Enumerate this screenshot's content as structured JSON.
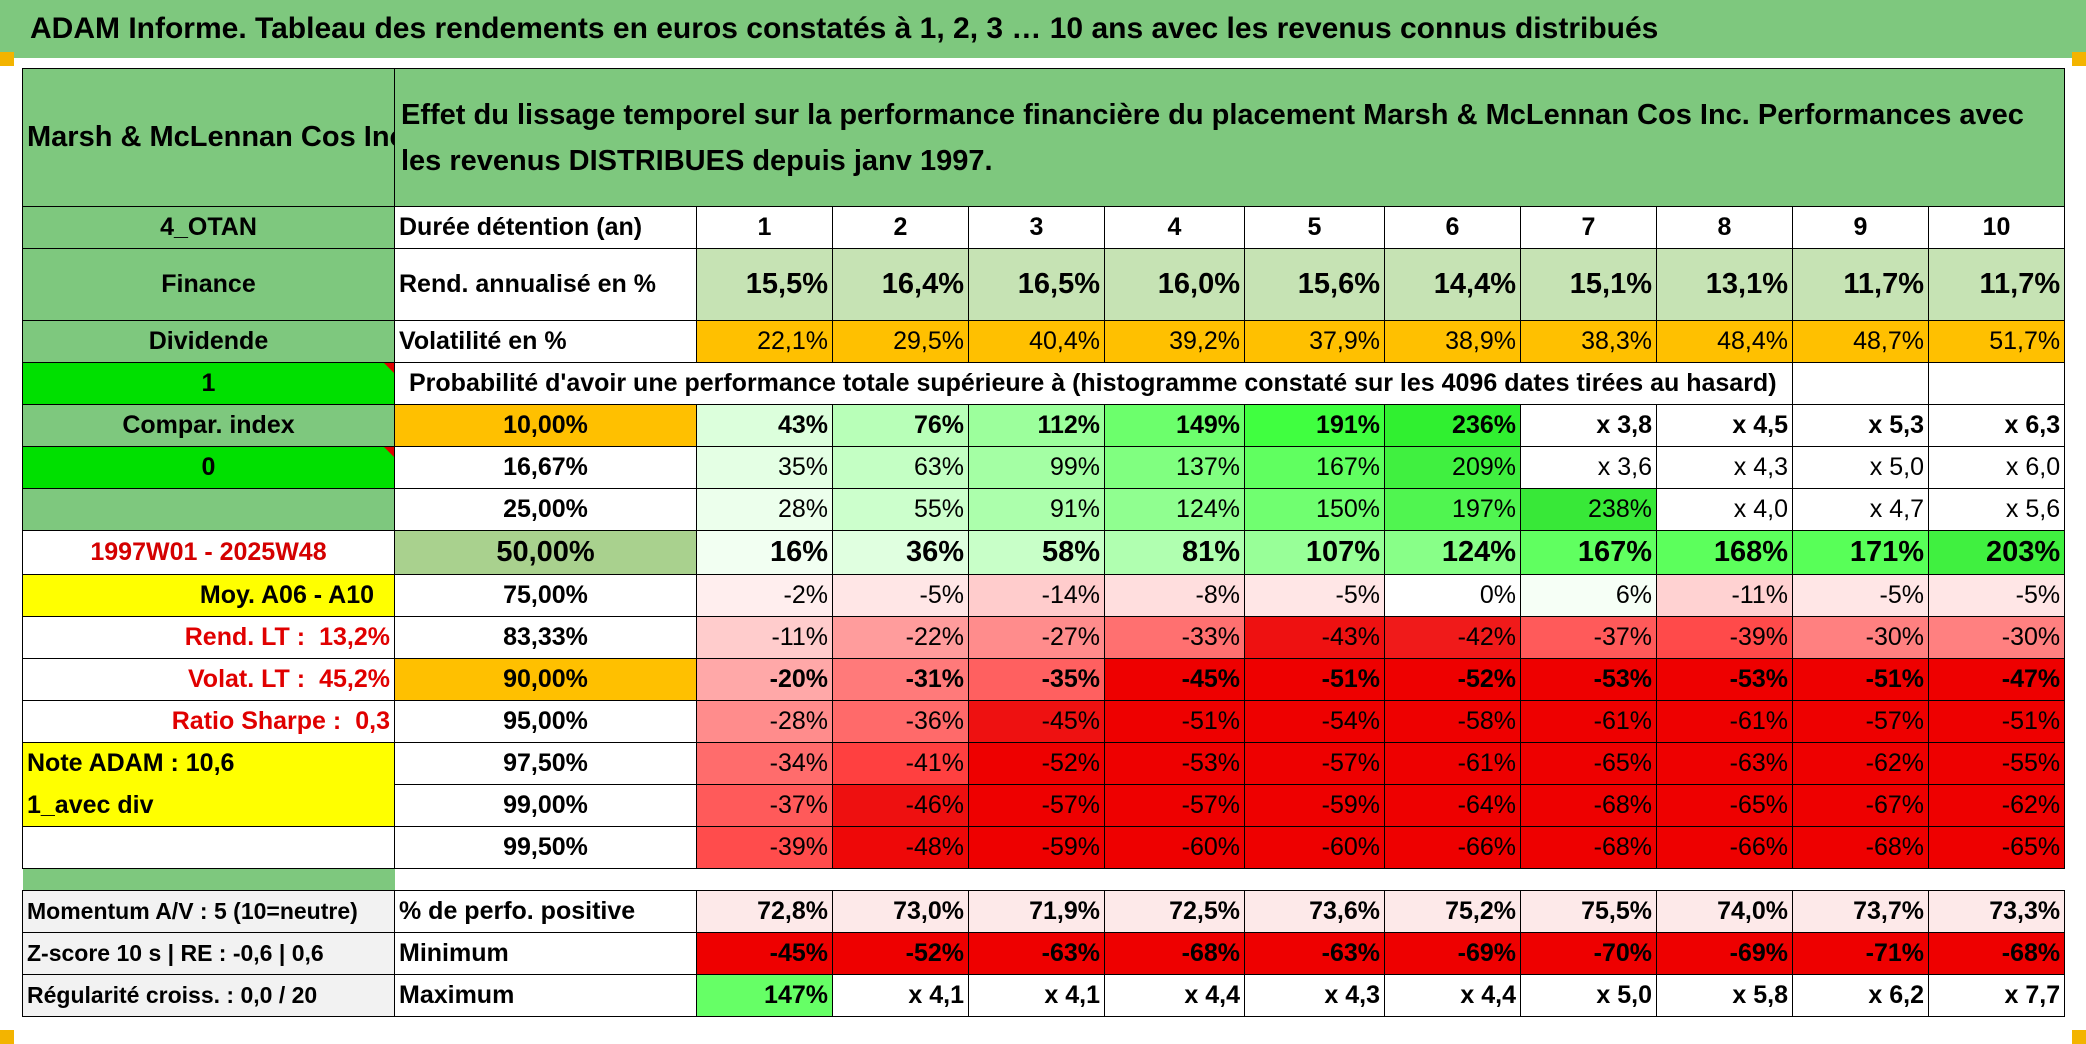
{
  "title": "ADAM Informe. Tableau des rendements en euros constatés à 1, 2, 3 … 10 ans avec les revenus connus distribués",
  "header": {
    "company": "Marsh & McLennan Cos Inc",
    "description": "Effet du lissage temporel sur la performance financière du placement Marsh & McLennan Cos Inc. Performances avec les revenus DISTRIBUES depuis janv 1997."
  },
  "left_labels": {
    "code": "4_OTAN",
    "sector": "Finance",
    "type": "Dividende",
    "flag1": "1",
    "compar_index": "Compar. index",
    "flag0": "0",
    "period": "1997W01 - 2025W48",
    "moy": "Moy. A06 - A10",
    "rend_lt_label": "Rend. LT :",
    "rend_lt_value": "13,2%",
    "volat_lt_label": "Volat. LT :",
    "volat_lt_value": "45,2%",
    "sharpe_label": "Ratio Sharpe :",
    "sharpe_value": "0,3",
    "note_adam": "Note ADAM : 10,6",
    "avec_div": "1_avec div"
  },
  "duration": {
    "label": "Durée détention (an)",
    "years": [
      "1",
      "2",
      "3",
      "4",
      "5",
      "6",
      "7",
      "8",
      "9",
      "10"
    ]
  },
  "rend": {
    "label": "Rend. annualisé en %",
    "values": [
      "15,5%",
      "16,4%",
      "16,5%",
      "16,0%",
      "15,6%",
      "14,4%",
      "15,1%",
      "13,1%",
      "11,7%",
      "11,7%"
    ]
  },
  "volat": {
    "label": "Volatilité en %",
    "values": [
      "22,1%",
      "29,5%",
      "40,4%",
      "39,2%",
      "37,9%",
      "38,9%",
      "38,3%",
      "48,4%",
      "48,7%",
      "51,7%"
    ]
  },
  "prob_header": "Probabilité d'avoir une performance totale supérieure à (histogramme constaté sur les 4096 dates tirées au hasard)",
  "prob_rows": [
    {
      "pct": "10,00%",
      "values": [
        "43%",
        "76%",
        "112%",
        "149%",
        "191%",
        "236%",
        "x 3,8",
        "x 4,5",
        "x 5,3",
        "x 6,3"
      ],
      "colors": [
        "#dcffdc",
        "#b8ffb8",
        "#9cff9c",
        "#6cff6c",
        "#40ff40",
        "#30f030",
        "#ffffff",
        "#ffffff",
        "#ffffff",
        "#ffffff"
      ]
    },
    {
      "pct": "16,67%",
      "values": [
        "35%",
        "63%",
        "99%",
        "137%",
        "167%",
        "209%",
        "x 3,6",
        "x 4,3",
        "x 5,0",
        "x 6,0"
      ],
      "colors": [
        "#e4ffe4",
        "#c4ffc4",
        "#a4ffa4",
        "#80ff80",
        "#60ff60",
        "#40f040",
        "#ffffff",
        "#ffffff",
        "#ffffff",
        "#ffffff"
      ]
    },
    {
      "pct": "25,00%",
      "values": [
        "28%",
        "55%",
        "91%",
        "124%",
        "150%",
        "197%",
        "238%",
        "x 4,0",
        "x 4,7",
        "x 5,6"
      ],
      "colors": [
        "#ecffec",
        "#ccffcc",
        "#acffac",
        "#90ff90",
        "#70ff70",
        "#50f550",
        "#38e838",
        "#ffffff",
        "#ffffff",
        "#ffffff"
      ]
    },
    {
      "pct": "50,00%",
      "values": [
        "16%",
        "36%",
        "58%",
        "81%",
        "107%",
        "124%",
        "167%",
        "168%",
        "171%",
        "203%"
      ],
      "colors": [
        "#f2fff2",
        "#e0ffe0",
        "#c8ffc8",
        "#b0ffb0",
        "#98ff98",
        "#88ff88",
        "#60ff60",
        "#5cff5c",
        "#58ff58",
        "#40f040"
      ]
    },
    {
      "pct": "75,00%",
      "values": [
        "-2%",
        "-5%",
        "-14%",
        "-8%",
        "-5%",
        "0%",
        "6%",
        "-11%",
        "-5%",
        "-5%"
      ],
      "colors": [
        "#ffeeee",
        "#ffe6e6",
        "#ffcccc",
        "#ffdede",
        "#ffe6e6",
        "#ffffff",
        "#f6fff6",
        "#ffd2d2",
        "#ffe6e6",
        "#ffe6e6"
      ]
    },
    {
      "pct": "83,33%",
      "values": [
        "-11%",
        "-22%",
        "-27%",
        "-33%",
        "-43%",
        "-42%",
        "-37%",
        "-39%",
        "-30%",
        "-30%"
      ],
      "colors": [
        "#ffcccc",
        "#ff9c9c",
        "#ff8c8c",
        "#ff7070",
        "#ee1111",
        "#f01a1a",
        "#ff5a5a",
        "#ff4a4a",
        "#ff8080",
        "#ff8080"
      ]
    },
    {
      "pct": "90,00%",
      "values": [
        "-20%",
        "-31%",
        "-35%",
        "-45%",
        "-51%",
        "-52%",
        "-53%",
        "-53%",
        "-51%",
        "-47%"
      ],
      "colors": [
        "#ffa8a8",
        "#ff7a7a",
        "#ff6060",
        "#ee0000",
        "#ee0000",
        "#ee0000",
        "#ee0000",
        "#ee0000",
        "#ee0000",
        "#ee0000"
      ]
    },
    {
      "pct": "95,00%",
      "values": [
        "-28%",
        "-36%",
        "-45%",
        "-51%",
        "-54%",
        "-58%",
        "-61%",
        "-61%",
        "-57%",
        "-51%"
      ],
      "colors": [
        "#ff8c8c",
        "#ff6a6a",
        "#ee1111",
        "#ee0000",
        "#ee0000",
        "#ee0000",
        "#ee0000",
        "#ee0000",
        "#ee0000",
        "#ee0000"
      ]
    },
    {
      "pct": "97,50%",
      "values": [
        "-34%",
        "-41%",
        "-52%",
        "-53%",
        "-57%",
        "-61%",
        "-65%",
        "-63%",
        "-62%",
        "-55%"
      ],
      "colors": [
        "#ff6c6c",
        "#ff4040",
        "#ee0000",
        "#ee0000",
        "#ee0000",
        "#ee0000",
        "#ee0000",
        "#ee0000",
        "#ee0000",
        "#ee0000"
      ]
    },
    {
      "pct": "99,00%",
      "values": [
        "-37%",
        "-46%",
        "-57%",
        "-57%",
        "-59%",
        "-64%",
        "-68%",
        "-65%",
        "-67%",
        "-62%"
      ],
      "colors": [
        "#ff5a5a",
        "#ee1010",
        "#ee0000",
        "#ee0000",
        "#ee0000",
        "#ee0000",
        "#ee0000",
        "#ee0000",
        "#ee0000",
        "#ee0000"
      ]
    },
    {
      "pct": "99,50%",
      "values": [
        "-39%",
        "-48%",
        "-59%",
        "-60%",
        "-60%",
        "-66%",
        "-68%",
        "-66%",
        "-68%",
        "-65%"
      ],
      "colors": [
        "#ff4c4c",
        "#ee0808",
        "#ee0000",
        "#ee0000",
        "#ee0000",
        "#ee0000",
        "#ee0000",
        "#ee0000",
        "#ee0000",
        "#ee0000"
      ]
    }
  ],
  "bottom": {
    "momentum": "Momentum A/V : 5 (10=neutre)",
    "zscore": "Z-score 10 s | RE : -0,6 | 0,6",
    "regularite": "Régularité croiss. : 0,0 / 20",
    "positive": {
      "label": "% de perfo. positive",
      "values": [
        "72,8%",
        "73,0%",
        "71,9%",
        "72,5%",
        "73,6%",
        "75,2%",
        "75,5%",
        "74,0%",
        "73,7%",
        "73,3%"
      ]
    },
    "minimum": {
      "label": "Minimum",
      "values": [
        "-45%",
        "-52%",
        "-63%",
        "-68%",
        "-63%",
        "-69%",
        "-70%",
        "-69%",
        "-71%",
        "-68%"
      ]
    },
    "maximum": {
      "label": "Maximum",
      "values": [
        "147%",
        "x 4,1",
        "x 4,1",
        "x 4,4",
        "x 4,3",
        "x 4,4",
        "x 5,0",
        "x 5,8",
        "x 6,2",
        "x 7,7"
      ]
    }
  },
  "colors": {
    "header_green": "#7ec87e",
    "rend_green": "#c6e3b4",
    "volat_orange": "#ffc000",
    "positive_pink": "#fde9e9",
    "minimum_red": "#ee0000",
    "max_green": "#66ff66"
  }
}
